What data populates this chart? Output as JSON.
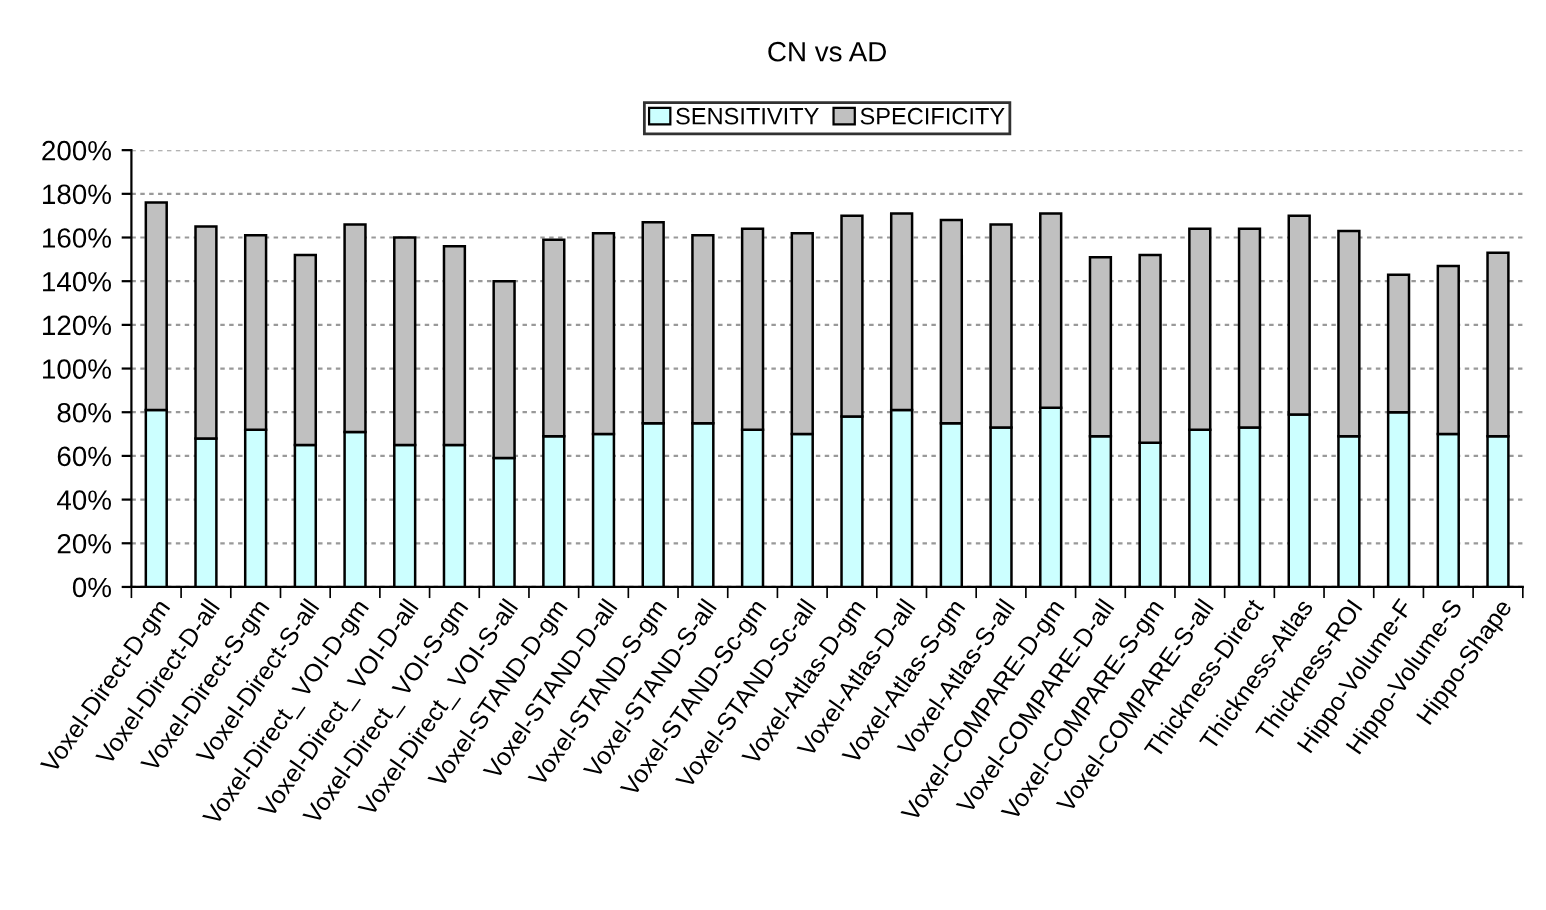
{
  "chart_data": {
    "type": "bar",
    "title": "CN vs AD",
    "stacked": true,
    "legend": "top",
    "grid": "y",
    "categories": [
      "Voxel-Direct-D-gm",
      "Voxel-Direct-D-all",
      "Voxel-Direct-S-gm",
      "Voxel-Direct-S-all",
      "Voxel-Direct_ VOI-D-gm",
      "Voxel-Direct_ VOI-D-all",
      "Voxel-Direct_ VOI-S-gm",
      "Voxel-Direct_ VOI-S-all",
      "Voxel-STAND-D-gm",
      "Voxel-STAND-D-all",
      "Voxel-STAND-S-gm",
      "Voxel-STAND-S-all",
      "Voxel-STAND-Sc-gm",
      "Voxel-STAND-Sc-all",
      "Voxel-Atlas-D-gm",
      "Voxel-Atlas-D-all",
      "Voxel-Atlas-S-gm",
      "Voxel-Atlas-S-all",
      "Voxel-COMPARE-D-gm",
      "Voxel-COMPARE-D-all",
      "Voxel-COMPARE-S-gm",
      "Voxel-COMPARE-S-all",
      "Thickness-Direct",
      "Thickness-Atlas",
      "Thickness-ROI",
      "Hippo-Volume-F",
      "Hippo-Volume-S",
      "Hippo-Shape"
    ],
    "series": [
      {
        "name": "SENSITIVITY",
        "color": "#ccffff",
        "values": [
          81,
          68,
          72,
          65,
          71,
          65,
          65,
          59,
          69,
          70,
          75,
          75,
          72,
          70,
          78,
          81,
          75,
          73,
          82,
          69,
          66,
          72,
          73,
          79,
          69,
          80,
          70,
          69
        ]
      },
      {
        "name": "SPECIFICITY",
        "color": "#c0c0c0",
        "values": [
          95,
          97,
          89,
          87,
          95,
          95,
          91,
          81,
          90,
          92,
          92,
          86,
          92,
          92,
          92,
          90,
          93,
          93,
          89,
          82,
          86,
          92,
          91,
          91,
          94,
          63,
          77,
          84
        ]
      }
    ],
    "ylim": [
      0,
      200
    ],
    "yticks": [
      {
        "value": 0,
        "label": "0%"
      },
      {
        "value": 20,
        "label": "20%"
      },
      {
        "value": 40,
        "label": "40%"
      },
      {
        "value": 60,
        "label": "60%"
      },
      {
        "value": 80,
        "label": "80%"
      },
      {
        "value": 100,
        "label": "100%"
      },
      {
        "value": 120,
        "label": "120%"
      },
      {
        "value": 140,
        "label": "140%"
      },
      {
        "value": 160,
        "label": "160%"
      },
      {
        "value": 180,
        "label": "180%"
      },
      {
        "value": 200,
        "label": "200%"
      }
    ]
  }
}
